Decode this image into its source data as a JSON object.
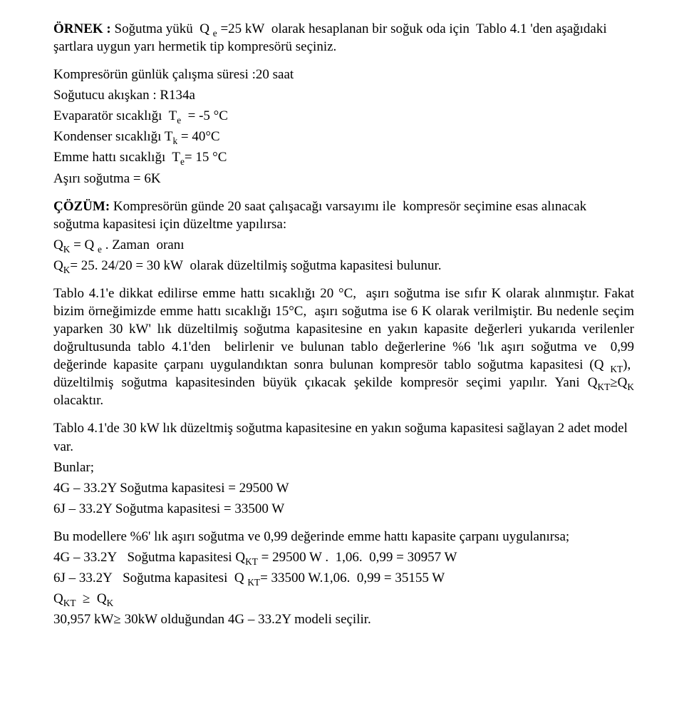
{
  "p1": "ÖRNEK : Soğutma yükü  Q e =25 kW  olarak hesaplanan bir soğuk oda için  Tablo 4.1 'den aşağıdaki şartlara uygun yarı hermetik tip kompresörü seçiniz.",
  "p2": "Kompresörün günlük çalışma süresi :20 saat",
  "p3": "Soğutucu akışkan : R134a",
  "p4": "Evaparatör sıcaklığı  Te  = -5 °C",
  "p5": "Kondenser sıcaklığı Tk = 40°C",
  "p6": "Emme hattı sıcaklığı  Te= 15 °C",
  "p7": "Aşırı soğutma  = 6K",
  "p8": "ÇÖZÜM: Kompresörün günde 20 saat çalışacağı varsayımı ile  kompresör seçimine esas alınacak soğutma kapasitesi için düzeltme yapılırsa:",
  "p9": "QK = Q e . Zaman  oranı",
  "p10": "QK= 25. 24/20 = 30 kW  olarak düzeltilmiş soğutma kapasitesi bulunur.",
  "p11": "Tablo 4.1'e dikkat edilirse emme hattı sıcaklığı 20 °C,  aşırı soğutma ise sıfır K olarak alınmıştır. Fakat bizim örneğimizde emme hattı sıcaklığı 15°C,  aşırı soğutma ise 6 K olarak verilmiştir. Bu nedenle seçim yaparken 30 kW' lık düzeltilmiş soğutma kapasitesine en yakın kapasite değerleri yukarıda verilenler doğrultusunda tablo 4.1'den  belirlenir ve bulunan tablo değerlerine %6 'lık aşırı soğutma ve  0,99 değerinde kapasite çarpanı uygulandıktan sonra bulunan kompresör tablo soğutma kapasitesi (Q KT),  düzeltilmiş soğutma kapasitesinden büyük çıkacak şekilde kompresör seçimi yapılır. Yani QKT≥QK olacaktır.",
  "p12": "Tablo 4.1'de 30 kW lık düzeltmiş soğutma kapasitesine en yakın soğuma kapasitesi sağlayan 2 adet model var.",
  "p13": "Bunlar;",
  "p14": "4G – 33.2Y  Soğutma kapasitesi = 29500 W",
  "p15": "6J – 33.2Y   Soğutma kapasitesi   = 33500 W",
  "p16": "Bu modellere %6' lık aşırı soğutma ve 0,99 değerinde emme hattı kapasite çarpanı uygulanırsa;",
  "p17": "4G – 33.2Y   Soğutma kapasitesi QKT = 29500 W .  1,06.  0,99 = 30957 W",
  "p18": "6J – 33.2Y   Soğutma kapasitesi  Q KT= 33500 W.1,06.  0,99 = 35155 W",
  "p19": "QKT  ≥  QK",
  "p20": "30,957 kW≥ 30kW olduğundan 4G – 33.2Y modeli seçilir."
}
